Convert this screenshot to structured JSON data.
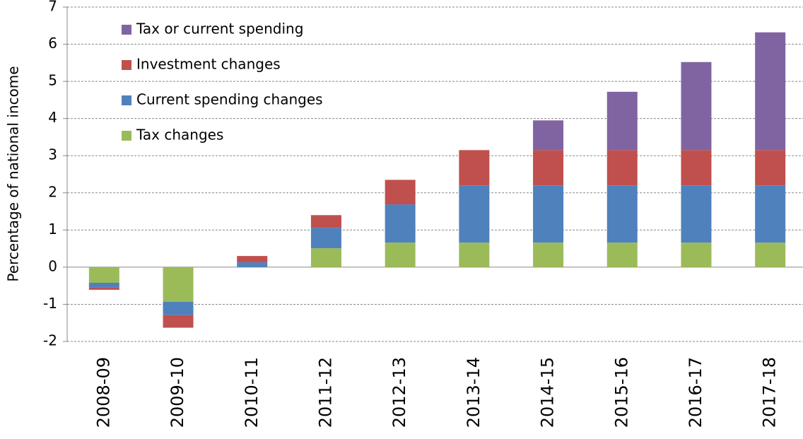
{
  "chart_data": {
    "type": "bar",
    "stacked": true,
    "y_label": "Percentage of national income",
    "categories": [
      "2008-09",
      "2009-10",
      "2010-11",
      "2011-12",
      "2012-13",
      "2013-14",
      "2014-15",
      "2015-16",
      "2016-17",
      "2017-18"
    ],
    "series": [
      {
        "name": "Tax changes",
        "color": "#9bbb59",
        "values": [
          -0.42,
          -0.93,
          0,
          0.51,
          0.66,
          0.66,
          0.66,
          0.66,
          0.66,
          0.66
        ]
      },
      {
        "name": "Current spending changes",
        "color": "#4f81bd",
        "values": [
          -0.12,
          -0.36,
          0.13,
          0.55,
          1.03,
          1.54,
          1.54,
          1.54,
          1.54,
          1.54
        ]
      },
      {
        "name": "Investment changes",
        "color": "#c0504d",
        "values": [
          -0.07,
          -0.34,
          0.17,
          0.34,
          0.66,
          0.95,
          0.95,
          0.95,
          0.95,
          0.95
        ]
      },
      {
        "name": "Tax or current spending",
        "color": "#8064a2",
        "values": [
          0,
          0,
          0,
          0,
          0,
          0,
          0.8,
          1.57,
          2.37,
          3.17
        ]
      }
    ],
    "ylim": [
      -2,
      7
    ],
    "yticks": [
      -2,
      -1,
      0,
      1,
      2,
      3,
      4,
      5,
      6,
      7
    ],
    "grid": true
  }
}
